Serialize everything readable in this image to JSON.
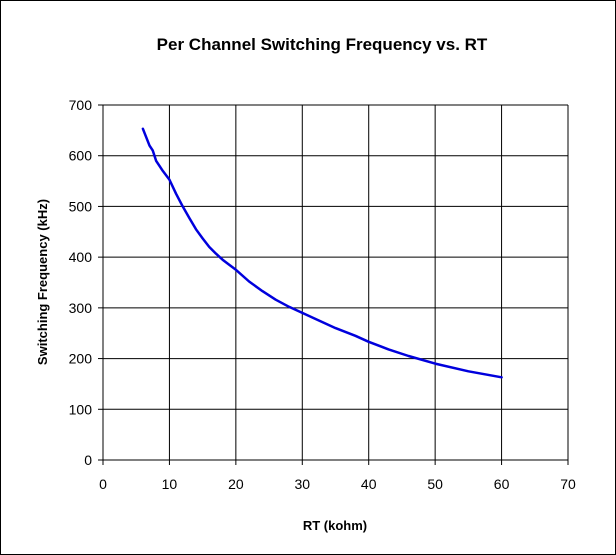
{
  "chart_data": {
    "type": "line",
    "title": "Per Channel Switching Frequency vs. RT",
    "xlabel": "RT (kohm)",
    "ylabel": "Switching Frequency (kHz)",
    "xlim": [
      0,
      70
    ],
    "ylim": [
      0,
      700
    ],
    "xticks": [
      0,
      10,
      20,
      30,
      40,
      50,
      60,
      70
    ],
    "yticks": [
      0,
      100,
      200,
      300,
      400,
      500,
      600,
      700
    ],
    "grid": true,
    "legend": "none",
    "series": [
      {
        "color": "#0000dd",
        "x": [
          6,
          7,
          7.5,
          8,
          8.5,
          9,
          10,
          11,
          12,
          13,
          14,
          15,
          16,
          17,
          18,
          19,
          20,
          22,
          24,
          26,
          28,
          30,
          32,
          35,
          38,
          40,
          43,
          46,
          50,
          55,
          60
        ],
        "y": [
          653,
          620,
          610,
          590,
          580,
          570,
          553,
          525,
          500,
          477,
          455,
          437,
          420,
          407,
          395,
          385,
          375,
          352,
          333,
          316,
          302,
          290,
          278,
          260,
          245,
          233,
          218,
          205,
          190,
          175,
          163
        ]
      }
    ]
  }
}
